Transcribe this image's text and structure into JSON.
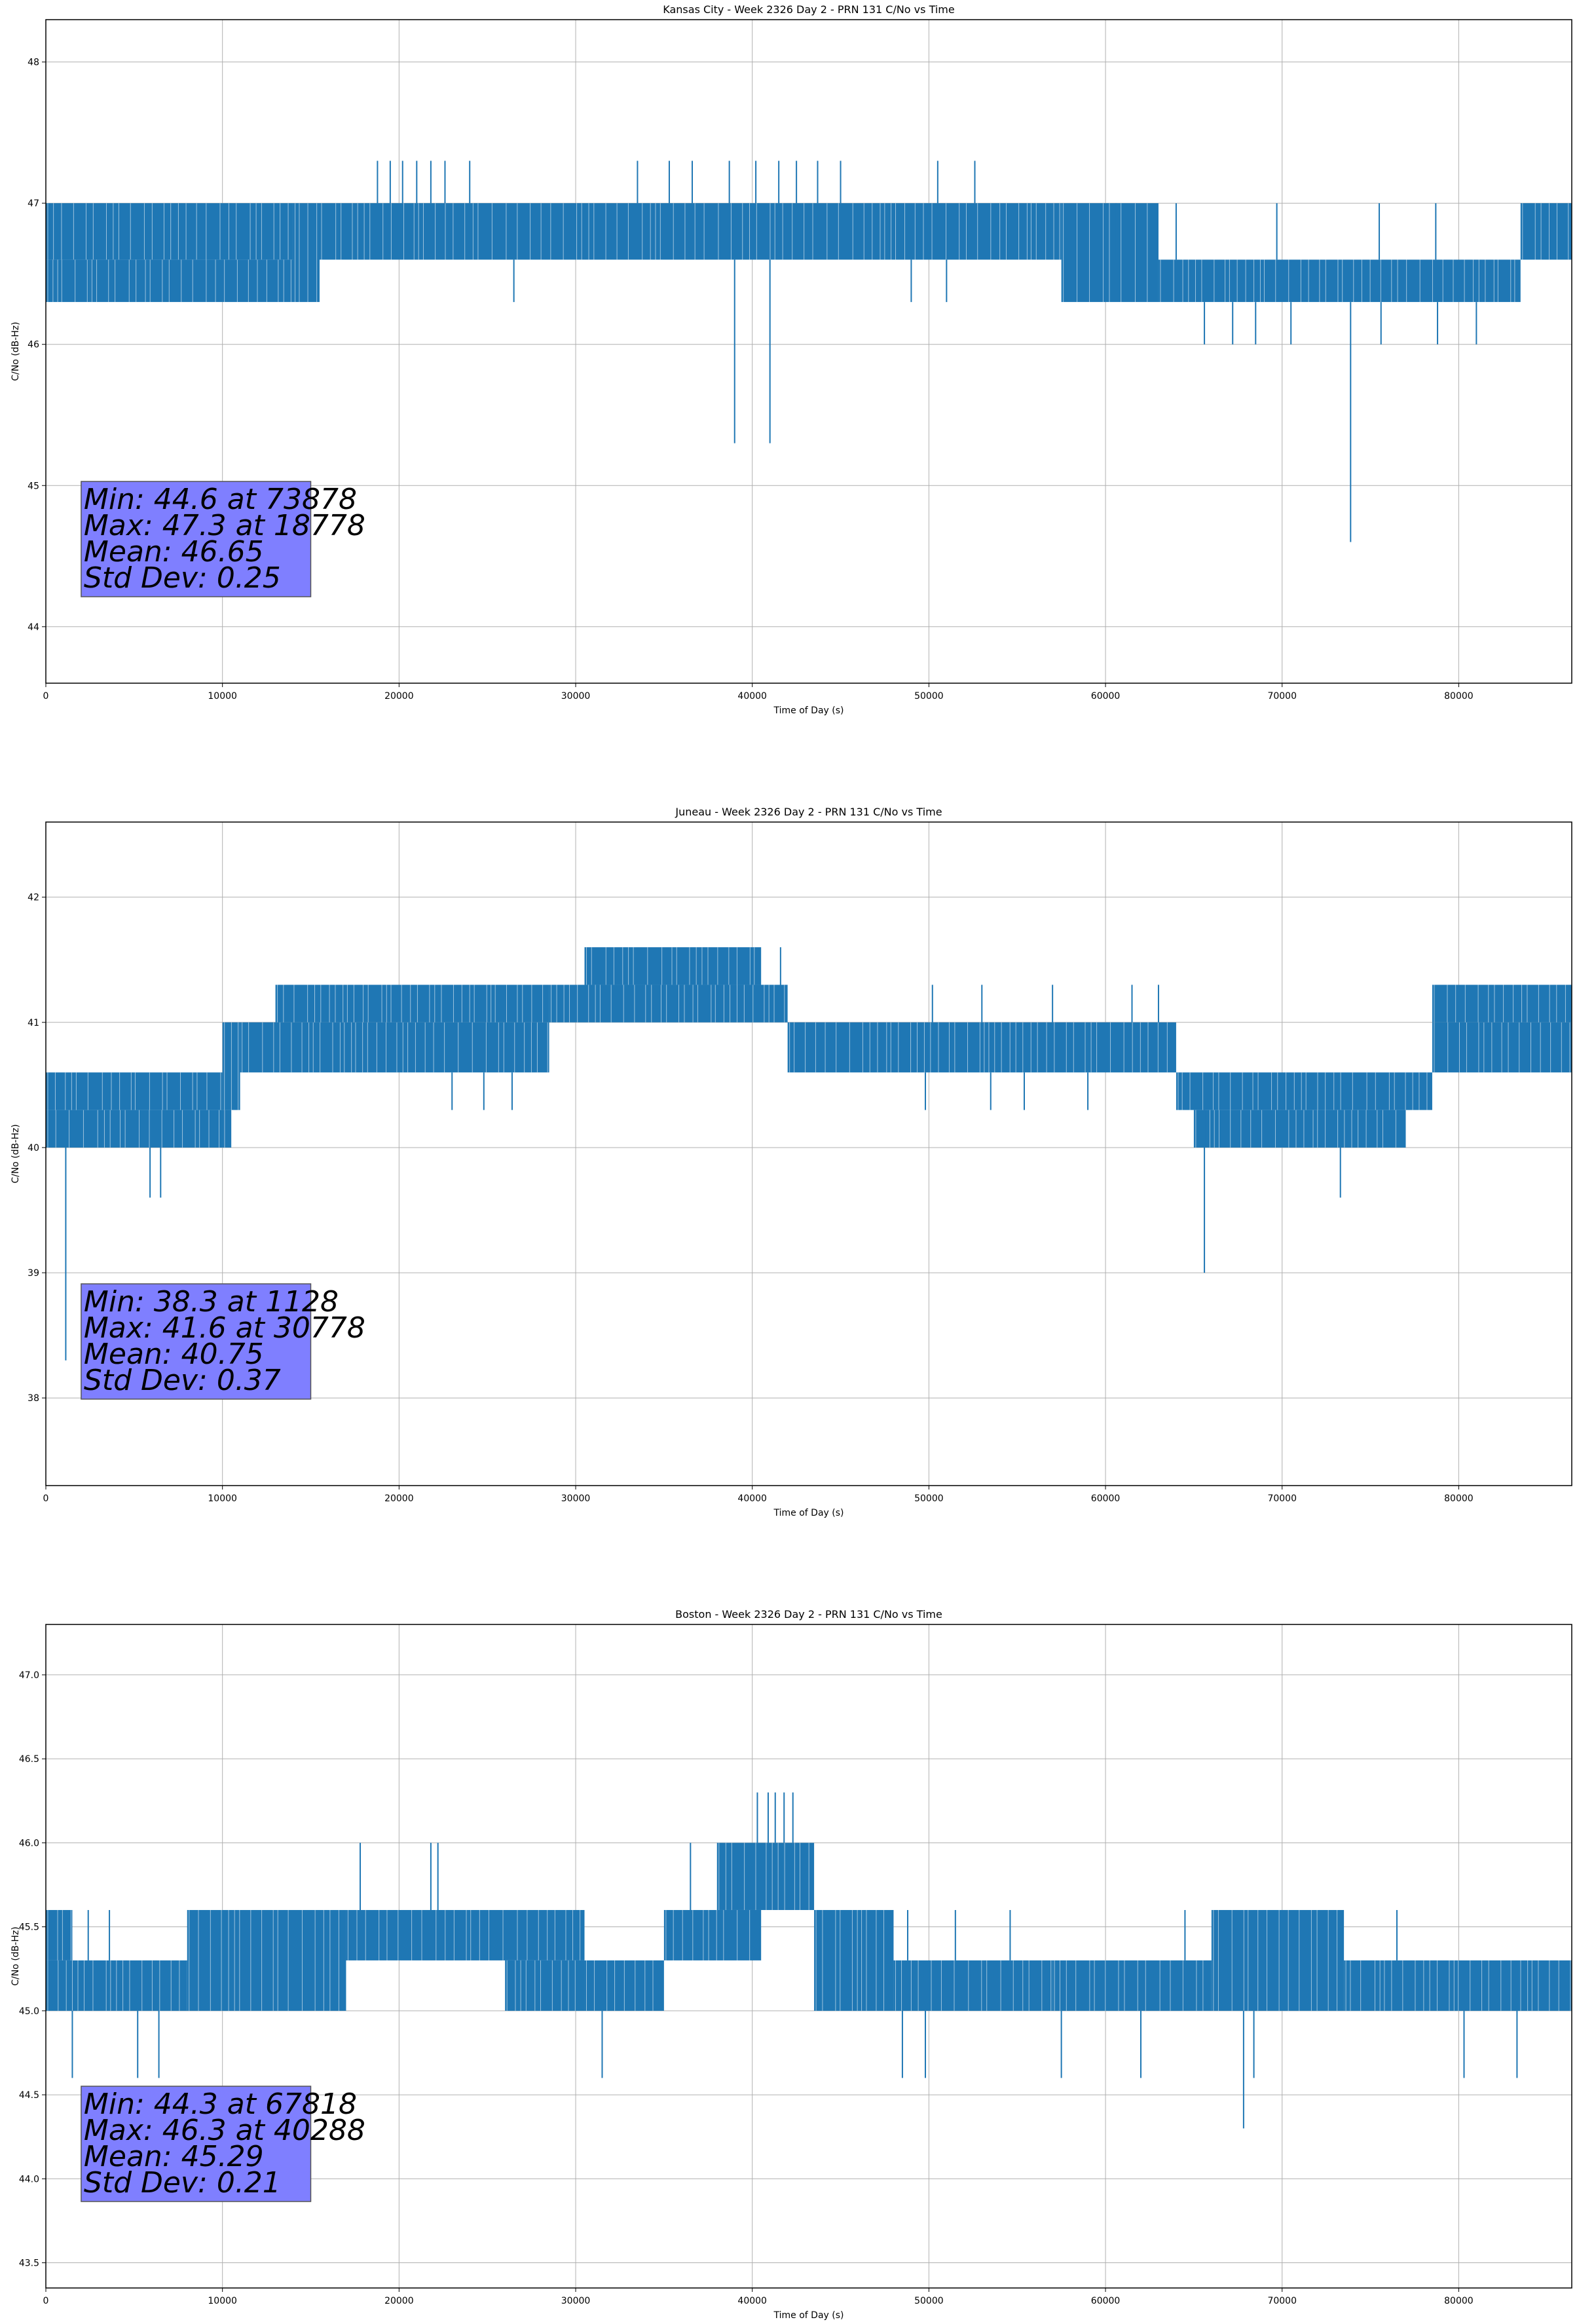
{
  "chart_data": [
    {
      "type": "line",
      "title": "Kansas City - Week 2326 Day 2 - PRN 131 C/No vs Time",
      "xlabel": "Time of Day (s)",
      "ylabel": "C/No (dB-Hz)",
      "xlim": [
        0,
        86400
      ],
      "ylim": [
        43.6,
        48.3
      ],
      "xticks": [
        0,
        10000,
        20000,
        30000,
        40000,
        50000,
        60000,
        70000,
        80000
      ],
      "yticks": [
        44,
        45,
        46,
        47,
        48
      ],
      "ytick_labels": [
        "44",
        "45",
        "46",
        "47",
        "48"
      ],
      "grid": true,
      "color": "#1f77b4",
      "stats": [
        "Min: 44.6 at 73878",
        "Max: 47.3 at 18778",
        "Mean: 46.65",
        "Std Dev: 0.25"
      ],
      "segments": [
        {
          "x": [
            0,
            14000
          ],
          "lo": 46.6,
          "hi": 47.0
        },
        {
          "x": [
            0,
            2500
          ],
          "lo": 46.3,
          "hi": 46.6
        },
        {
          "x": [
            2500,
            14000
          ],
          "lo": 46.3,
          "hi": 46.6
        },
        {
          "x": [
            14000,
            15500
          ],
          "lo": 46.3,
          "hi": 47.0
        },
        {
          "x": [
            15500,
            57500
          ],
          "lo": 46.6,
          "hi": 47.0
        },
        {
          "x": [
            57500,
            63000
          ],
          "lo": 46.3,
          "hi": 47.0
        },
        {
          "x": [
            63000,
            83500
          ],
          "lo": 46.3,
          "hi": 46.6
        },
        {
          "x": [
            83500,
            86400
          ],
          "lo": 46.6,
          "hi": 47.0
        }
      ],
      "spikes": [
        {
          "x": 18778,
          "lo": 47.0,
          "hi": 47.3
        },
        {
          "x": 19500,
          "lo": 47.0,
          "hi": 47.3
        },
        {
          "x": 20200,
          "lo": 47.0,
          "hi": 47.3
        },
        {
          "x": 21000,
          "lo": 47.0,
          "hi": 47.3
        },
        {
          "x": 21800,
          "lo": 47.0,
          "hi": 47.3
        },
        {
          "x": 22600,
          "lo": 47.0,
          "hi": 47.3
        },
        {
          "x": 24000,
          "lo": 47.0,
          "hi": 47.3
        },
        {
          "x": 33500,
          "lo": 47.0,
          "hi": 47.3
        },
        {
          "x": 35300,
          "lo": 47.0,
          "hi": 47.3
        },
        {
          "x": 36600,
          "lo": 47.0,
          "hi": 47.3
        },
        {
          "x": 38700,
          "lo": 47.0,
          "hi": 47.3
        },
        {
          "x": 40200,
          "lo": 47.0,
          "hi": 47.3
        },
        {
          "x": 41500,
          "lo": 47.0,
          "hi": 47.3
        },
        {
          "x": 42500,
          "lo": 47.0,
          "hi": 47.3
        },
        {
          "x": 43700,
          "lo": 47.0,
          "hi": 47.3
        },
        {
          "x": 45000,
          "lo": 47.0,
          "hi": 47.3
        },
        {
          "x": 50500,
          "lo": 47.0,
          "hi": 47.3
        },
        {
          "x": 52600,
          "lo": 47.0,
          "hi": 47.3
        },
        {
          "x": 39000,
          "lo": 45.3,
          "hi": 46.6
        },
        {
          "x": 41000,
          "lo": 45.3,
          "hi": 46.6
        },
        {
          "x": 73878,
          "lo": 44.6,
          "hi": 46.3
        },
        {
          "x": 65600,
          "lo": 46.0,
          "hi": 46.3
        },
        {
          "x": 67200,
          "lo": 46.0,
          "hi": 46.3
        },
        {
          "x": 68500,
          "lo": 46.0,
          "hi": 46.3
        },
        {
          "x": 70500,
          "lo": 46.0,
          "hi": 46.3
        },
        {
          "x": 75600,
          "lo": 46.0,
          "hi": 46.3
        },
        {
          "x": 78800,
          "lo": 46.0,
          "hi": 46.3
        },
        {
          "x": 81000,
          "lo": 46.0,
          "hi": 46.3
        },
        {
          "x": 26500,
          "lo": 46.3,
          "hi": 46.6
        },
        {
          "x": 49000,
          "lo": 46.3,
          "hi": 46.6
        },
        {
          "x": 51000,
          "lo": 46.3,
          "hi": 46.6
        },
        {
          "x": 60600,
          "lo": 46.6,
          "hi": 47.0
        },
        {
          "x": 64000,
          "lo": 46.6,
          "hi": 47.0
        },
        {
          "x": 69700,
          "lo": 46.6,
          "hi": 47.0
        },
        {
          "x": 75500,
          "lo": 46.6,
          "hi": 47.0
        },
        {
          "x": 78700,
          "lo": 46.6,
          "hi": 47.0
        }
      ]
    },
    {
      "type": "line",
      "title": "Juneau - Week 2326 Day 2 - PRN 131 C/No vs Time",
      "xlabel": "Time of Day (s)",
      "ylabel": "C/No (dB-Hz)",
      "xlim": [
        0,
        86400
      ],
      "ylim": [
        37.3,
        42.6
      ],
      "xticks": [
        0,
        10000,
        20000,
        30000,
        40000,
        50000,
        60000,
        70000,
        80000
      ],
      "yticks": [
        38,
        39,
        40,
        41,
        42
      ],
      "ytick_labels": [
        "38",
        "39",
        "40",
        "41",
        "42"
      ],
      "grid": true,
      "color": "#1f77b4",
      "stats": [
        "Min: 38.3 at 1128",
        "Max: 41.6 at 30778",
        "Mean: 40.75",
        "Std Dev: 0.37"
      ],
      "segments": [
        {
          "x": [
            0,
            10500
          ],
          "lo": 40.0,
          "hi": 40.3
        },
        {
          "x": [
            0,
            10000
          ],
          "lo": 40.3,
          "hi": 40.6
        },
        {
          "x": [
            10000,
            11000
          ],
          "lo": 40.3,
          "hi": 41.0
        },
        {
          "x": [
            11000,
            28500
          ],
          "lo": 40.6,
          "hi": 41.0
        },
        {
          "x": [
            13000,
            28500
          ],
          "lo": 41.0,
          "hi": 41.3
        },
        {
          "x": [
            28500,
            42000
          ],
          "lo": 41.0,
          "hi": 41.3
        },
        {
          "x": [
            30500,
            40500
          ],
          "lo": 41.3,
          "hi": 41.6
        },
        {
          "x": [
            42000,
            64000
          ],
          "lo": 40.6,
          "hi": 41.0
        },
        {
          "x": [
            64000,
            78500
          ],
          "lo": 40.3,
          "hi": 40.6
        },
        {
          "x": [
            65000,
            77000
          ],
          "lo": 40.0,
          "hi": 40.3
        },
        {
          "x": [
            78500,
            86400
          ],
          "lo": 40.6,
          "hi": 41.0
        },
        {
          "x": [
            78500,
            86400
          ],
          "lo": 41.0,
          "hi": 41.3
        }
      ],
      "spikes": [
        {
          "x": 1128,
          "lo": 38.3,
          "hi": 40.0
        },
        {
          "x": 5900,
          "lo": 39.6,
          "hi": 40.0
        },
        {
          "x": 6500,
          "lo": 39.6,
          "hi": 40.0
        },
        {
          "x": 65600,
          "lo": 39.0,
          "hi": 40.3
        },
        {
          "x": 73300,
          "lo": 39.6,
          "hi": 40.3
        },
        {
          "x": 23000,
          "lo": 40.3,
          "hi": 40.6
        },
        {
          "x": 24800,
          "lo": 40.3,
          "hi": 40.6
        },
        {
          "x": 26400,
          "lo": 40.3,
          "hi": 40.6
        },
        {
          "x": 49800,
          "lo": 40.3,
          "hi": 40.6
        },
        {
          "x": 53500,
          "lo": 40.3,
          "hi": 40.6
        },
        {
          "x": 55400,
          "lo": 40.3,
          "hi": 40.6
        },
        {
          "x": 59000,
          "lo": 40.3,
          "hi": 40.6
        },
        {
          "x": 41600,
          "lo": 41.3,
          "hi": 41.6
        },
        {
          "x": 50200,
          "lo": 41.0,
          "hi": 41.3
        },
        {
          "x": 53000,
          "lo": 41.0,
          "hi": 41.3
        },
        {
          "x": 57000,
          "lo": 41.0,
          "hi": 41.3
        },
        {
          "x": 61500,
          "lo": 41.0,
          "hi": 41.3
        },
        {
          "x": 63000,
          "lo": 41.0,
          "hi": 41.3
        }
      ]
    },
    {
      "type": "line",
      "title": "Boston - Week 2326 Day 2 - PRN 131 C/No vs Time",
      "xlabel": "Time of Day (s)",
      "ylabel": "C/No (dB-Hz)",
      "xlim": [
        0,
        86400
      ],
      "ylim": [
        43.35,
        47.3
      ],
      "xticks": [
        0,
        10000,
        20000,
        30000,
        40000,
        50000,
        60000,
        70000,
        80000
      ],
      "yticks": [
        43.5,
        44.0,
        44.5,
        45.0,
        45.5,
        46.0,
        46.5,
        47.0
      ],
      "ytick_labels": [
        "43.5",
        "44.0",
        "44.5",
        "45.0",
        "45.5",
        "46.0",
        "46.5",
        "47.0"
      ],
      "grid": true,
      "color": "#1f77b4",
      "stats": [
        "Min: 44.3 at 67818",
        "Max: 46.3 at 40288",
        "Mean: 45.29",
        "Std Dev: 0.21"
      ],
      "segments": [
        {
          "x": [
            0,
            8000
          ],
          "lo": 45.0,
          "hi": 45.3
        },
        {
          "x": [
            0,
            1500
          ],
          "lo": 45.3,
          "hi": 45.6
        },
        {
          "x": [
            8000,
            17000
          ],
          "lo": 45.0,
          "hi": 45.6
        },
        {
          "x": [
            17000,
            30500
          ],
          "lo": 45.3,
          "hi": 45.6
        },
        {
          "x": [
            26000,
            30500
          ],
          "lo": 45.0,
          "hi": 45.3
        },
        {
          "x": [
            30500,
            35000
          ],
          "lo": 45.0,
          "hi": 45.3
        },
        {
          "x": [
            35000,
            40500
          ],
          "lo": 45.3,
          "hi": 45.6
        },
        {
          "x": [
            38000,
            43500
          ],
          "lo": 45.6,
          "hi": 46.0
        },
        {
          "x": [
            43500,
            48000
          ],
          "lo": 45.0,
          "hi": 45.6
        },
        {
          "x": [
            48000,
            57000
          ],
          "lo": 45.0,
          "hi": 45.3
        },
        {
          "x": [
            57000,
            66000
          ],
          "lo": 45.0,
          "hi": 45.3
        },
        {
          "x": [
            66000,
            73500
          ],
          "lo": 45.0,
          "hi": 45.6
        },
        {
          "x": [
            73500,
            86400
          ],
          "lo": 45.0,
          "hi": 45.3
        }
      ],
      "spikes": [
        {
          "x": 40288,
          "lo": 46.0,
          "hi": 46.3
        },
        {
          "x": 40900,
          "lo": 46.0,
          "hi": 46.3
        },
        {
          "x": 41300,
          "lo": 46.0,
          "hi": 46.3
        },
        {
          "x": 41800,
          "lo": 46.0,
          "hi": 46.3
        },
        {
          "x": 42300,
          "lo": 46.0,
          "hi": 46.3
        },
        {
          "x": 36500,
          "lo": 45.6,
          "hi": 46.0
        },
        {
          "x": 17800,
          "lo": 45.6,
          "hi": 46.0
        },
        {
          "x": 21800,
          "lo": 45.6,
          "hi": 46.0
        },
        {
          "x": 22200,
          "lo": 45.6,
          "hi": 46.0
        },
        {
          "x": 67818,
          "lo": 44.3,
          "hi": 45.0
        },
        {
          "x": 1500,
          "lo": 44.6,
          "hi": 45.0
        },
        {
          "x": 5200,
          "lo": 44.6,
          "hi": 45.0
        },
        {
          "x": 6400,
          "lo": 44.6,
          "hi": 45.0
        },
        {
          "x": 31500,
          "lo": 44.6,
          "hi": 45.0
        },
        {
          "x": 48500,
          "lo": 44.6,
          "hi": 45.0
        },
        {
          "x": 49800,
          "lo": 44.6,
          "hi": 45.0
        },
        {
          "x": 57500,
          "lo": 44.6,
          "hi": 45.0
        },
        {
          "x": 62000,
          "lo": 44.6,
          "hi": 45.0
        },
        {
          "x": 68400,
          "lo": 44.6,
          "hi": 45.0
        },
        {
          "x": 80300,
          "lo": 44.6,
          "hi": 45.0
        },
        {
          "x": 83300,
          "lo": 44.6,
          "hi": 45.0
        },
        {
          "x": 2400,
          "lo": 45.3,
          "hi": 45.6
        },
        {
          "x": 3600,
          "lo": 45.3,
          "hi": 45.6
        },
        {
          "x": 48800,
          "lo": 45.3,
          "hi": 45.6
        },
        {
          "x": 51500,
          "lo": 45.3,
          "hi": 45.6
        },
        {
          "x": 54600,
          "lo": 45.3,
          "hi": 45.6
        },
        {
          "x": 64500,
          "lo": 45.3,
          "hi": 45.6
        },
        {
          "x": 76500,
          "lo": 45.3,
          "hi": 45.6
        }
      ]
    }
  ]
}
